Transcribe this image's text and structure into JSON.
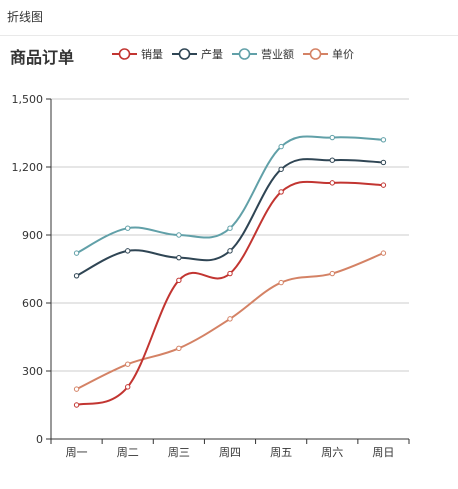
{
  "window": {
    "title": "折线图"
  },
  "chart_data": {
    "type": "line",
    "title": "商品订单",
    "categories": [
      "周一",
      "周二",
      "周三",
      "周四",
      "周五",
      "周六",
      "周日"
    ],
    "series": [
      {
        "name": "销量",
        "color": "#c23531",
        "values": [
          150,
          230,
          700,
          730,
          1090,
          1130,
          1120
        ]
      },
      {
        "name": "产量",
        "color": "#2f4554",
        "values": [
          720,
          830,
          800,
          830,
          1190,
          1230,
          1220
        ]
      },
      {
        "name": "营业额",
        "color": "#61a0a8",
        "values": [
          820,
          930,
          900,
          930,
          1290,
          1330,
          1320
        ]
      },
      {
        "name": "单价",
        "color": "#d48265",
        "values": [
          220,
          330,
          400,
          530,
          690,
          730,
          820
        ]
      }
    ],
    "ylim": [
      0,
      1500
    ],
    "yticks": [
      0,
      300,
      600,
      900,
      1200,
      1500
    ],
    "ytick_labels": [
      "0",
      "300",
      "600",
      "900",
      "1,200",
      "1,500"
    ],
    "grid": true,
    "legend_position": "top"
  }
}
